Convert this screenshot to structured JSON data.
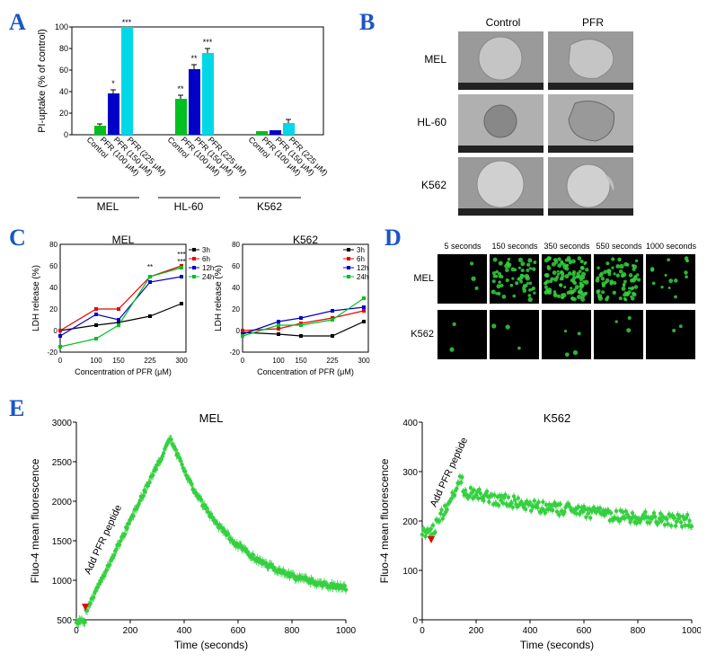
{
  "panels": {
    "A": {
      "label": "A",
      "type": "bar",
      "ylabel": "PI-uptake (% of control)",
      "ylim": [
        0,
        100
      ],
      "ytick_step": 20,
      "groups": [
        "MEL",
        "HL-60",
        "K562"
      ],
      "conditions": [
        "Control",
        "PFR (100 μM)",
        "PFR (150 μM)",
        "PFR (225 μM)"
      ],
      "colors": [
        "#e80000",
        "#00c020",
        "#0000c8",
        "#00d8e8"
      ],
      "values": {
        "MEL": [
          0,
          8,
          38,
          100
        ],
        "HL-60": [
          0,
          33,
          61,
          76
        ],
        "K562": [
          0,
          3,
          4,
          11
        ]
      },
      "errors": {
        "MEL": [
          0,
          1,
          2,
          2
        ],
        "HL-60": [
          0,
          1,
          2,
          2
        ],
        "K562": [
          0,
          1,
          1,
          2
        ]
      },
      "sig": {
        "MEL": [
          "",
          "",
          "*",
          "***"
        ],
        "HL-60": [
          "",
          "**",
          "**",
          "***"
        ],
        "K562": [
          "",
          "",
          "",
          ""
        ]
      },
      "label_fontsize": 11,
      "tick_fontsize": 9,
      "bar_width": 0.7,
      "background": "#ffffff",
      "border_color": "#000000"
    },
    "B": {
      "label": "B",
      "type": "image-grid",
      "col_headers": [
        "Control",
        "PFR"
      ],
      "row_headers": [
        "MEL",
        "HL-60",
        "K562"
      ],
      "cell_bg": "#7a7a7a",
      "label_fontsize": 12
    },
    "C": {
      "label": "C",
      "type": "line",
      "ylabel": "LDH release (%)",
      "xlabel": "Concentration of PFR (μM)",
      "xticks": [
        0,
        100,
        150,
        225,
        300
      ],
      "ylim": [
        -20,
        80
      ],
      "ytick_step": 20,
      "legend": [
        "3h",
        "6h",
        "12h",
        "24h"
      ],
      "colors": [
        "#000000",
        "#e80000",
        "#0000c8",
        "#00c020"
      ],
      "subplots": {
        "MEL": {
          "3h": [
            0,
            5,
            7,
            13,
            25
          ],
          "6h": [
            0,
            20,
            20,
            50,
            60
          ],
          "12h": [
            -5,
            15,
            10,
            45,
            50
          ],
          "24h": [
            -15,
            -8,
            5,
            50,
            58
          ]
        },
        "K562": {
          "3h": [
            -2,
            -3,
            -5,
            -5,
            8
          ],
          "6h": [
            0,
            2,
            7,
            12,
            18
          ],
          "12h": [
            -3,
            8,
            12,
            18,
            22
          ],
          "24h": [
            -5,
            5,
            5,
            10,
            30
          ]
        }
      },
      "sig_marks": {
        "MEL": {
          "225": "**",
          "300": "***"
        }
      },
      "marker": "square",
      "marker_size": 4,
      "line_width": 1.2,
      "label_fontsize": 11,
      "tick_fontsize": 9
    },
    "D": {
      "label": "D",
      "type": "image-grid",
      "col_headers": [
        "5 seconds",
        "150 seconds",
        "350 seconds",
        "550 seconds",
        "1000 seconds"
      ],
      "row_headers": [
        "MEL",
        "K562"
      ],
      "cell_bg": "#000000",
      "dot_color": "#35d040",
      "label_fontsize": 11
    },
    "E": {
      "label": "E",
      "type": "scatter",
      "ylabel": "Fluo-4 mean fluorescence",
      "xlabel": "Time (seconds)",
      "xlim": [
        0,
        1000
      ],
      "xtick_step": 200,
      "marker_color": "#35d040",
      "marker_size": 2.5,
      "annotation": "Add PFR peptide",
      "arrow_color": "#e80000",
      "subplots": {
        "MEL": {
          "ylim": [
            500,
            3000
          ],
          "ytick_step": 500,
          "peak": 2800,
          "peak_t": 350
        },
        "K562": {
          "ylim": [
            0,
            400
          ],
          "ytick_step": 100,
          "baseline": 175
        }
      },
      "label_fontsize": 12,
      "tick_fontsize": 10,
      "title_fontsize": 13
    }
  }
}
